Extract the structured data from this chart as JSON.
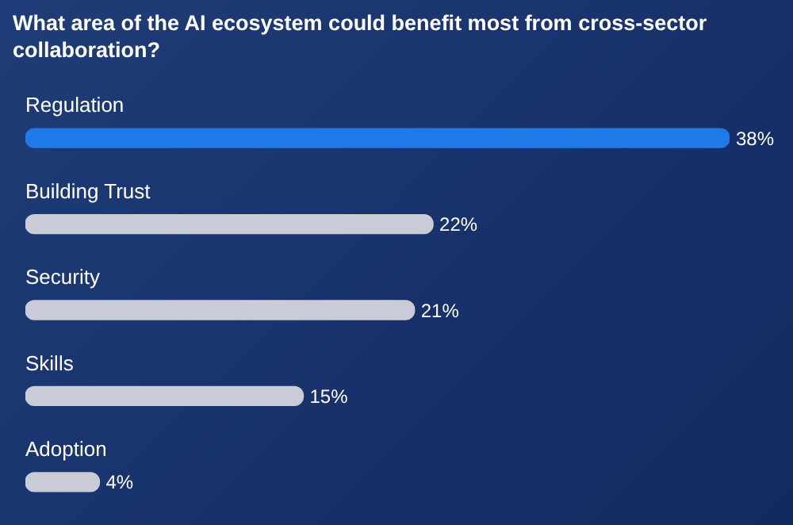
{
  "chart_data": {
    "type": "bar",
    "orientation": "horizontal",
    "title": "What area of the AI ecosystem could benefit most from cross-sector collaboration?",
    "categories": [
      "Regulation",
      "Building Trust",
      "Security",
      "Skills",
      "Adoption"
    ],
    "values": [
      38,
      22,
      21,
      15,
      4
    ],
    "colors": [
      "#1f7ae8",
      "#c9ccd6",
      "#c9ccd6",
      "#c9ccd6",
      "#c9ccd6"
    ],
    "value_labels": [
      "38%",
      "22%",
      "21%",
      "15%",
      "4%"
    ]
  }
}
